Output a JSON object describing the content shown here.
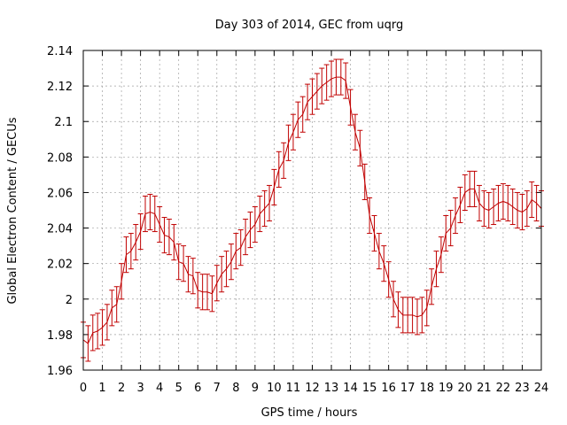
{
  "chart_data": {
    "type": "line",
    "title": "Day 303 of 2014, GEC from uqrg",
    "xlabel": "GPS time / hours",
    "ylabel": "Global Electron Content / GECUs",
    "xlim": [
      0,
      24
    ],
    "ylim": [
      1.96,
      2.14
    ],
    "xticks": [
      0,
      1,
      2,
      3,
      4,
      5,
      6,
      7,
      8,
      9,
      10,
      11,
      12,
      13,
      14,
      15,
      16,
      17,
      18,
      19,
      20,
      21,
      22,
      23,
      24
    ],
    "yticks": [
      1.96,
      1.98,
      2.0,
      2.02,
      2.04,
      2.06,
      2.08,
      2.1,
      2.12,
      2.14
    ],
    "ytick_labels": [
      "1.96",
      "1.98",
      "2",
      "2.02",
      "2.04",
      "2.06",
      "2.08",
      "2.1",
      "2.12",
      "2.14"
    ],
    "grid": true,
    "error": 0.01,
    "series": [
      {
        "color": "#c00000",
        "x": [
          0.0,
          0.25,
          0.5,
          0.75,
          1.0,
          1.25,
          1.5,
          1.75,
          2.0,
          2.25,
          2.5,
          2.75,
          3.0,
          3.25,
          3.5,
          3.75,
          4.0,
          4.25,
          4.5,
          4.75,
          5.0,
          5.25,
          5.5,
          5.75,
          6.0,
          6.25,
          6.5,
          6.75,
          7.0,
          7.25,
          7.5,
          7.75,
          8.0,
          8.25,
          8.5,
          8.75,
          9.0,
          9.25,
          9.5,
          9.75,
          10.0,
          10.25,
          10.5,
          10.75,
          11.0,
          11.25,
          11.5,
          11.75,
          12.0,
          12.25,
          12.5,
          12.75,
          13.0,
          13.25,
          13.5,
          13.75,
          14.0,
          14.25,
          14.5,
          14.75,
          15.0,
          15.25,
          15.5,
          15.75,
          16.0,
          16.25,
          16.5,
          16.75,
          17.0,
          17.25,
          17.5,
          17.75,
          18.0,
          18.25,
          18.5,
          18.75,
          19.0,
          19.25,
          19.5,
          19.75,
          20.0,
          20.25,
          20.5,
          20.75,
          21.0,
          21.25,
          21.5,
          21.75,
          22.0,
          22.25,
          22.5,
          22.75,
          23.0,
          23.25,
          23.5,
          23.75,
          24.0
        ],
        "y": [
          1.977,
          1.975,
          1.981,
          1.982,
          1.984,
          1.987,
          1.995,
          1.997,
          2.01,
          2.025,
          2.027,
          2.032,
          2.038,
          2.048,
          2.049,
          2.048,
          2.042,
          2.036,
          2.035,
          2.032,
          2.021,
          2.02,
          2.014,
          2.013,
          2.005,
          2.004,
          2.004,
          2.003,
          2.009,
          2.014,
          2.017,
          2.021,
          2.027,
          2.029,
          2.035,
          2.039,
          2.042,
          2.048,
          2.051,
          2.054,
          2.063,
          2.073,
          2.078,
          2.088,
          2.094,
          2.101,
          2.104,
          2.111,
          2.114,
          2.117,
          2.12,
          2.122,
          2.124,
          2.125,
          2.125,
          2.123,
          2.108,
          2.094,
          2.085,
          2.066,
          2.047,
          2.037,
          2.027,
          2.02,
          2.011,
          2.0,
          1.994,
          1.991,
          1.991,
          1.991,
          1.99,
          1.991,
          1.995,
          2.007,
          2.017,
          2.025,
          2.037,
          2.04,
          2.047,
          2.053,
          2.06,
          2.062,
          2.062,
          2.054,
          2.051,
          2.05,
          2.052,
          2.054,
          2.055,
          2.054,
          2.052,
          2.05,
          2.049,
          2.051,
          2.056,
          2.054,
          2.051
        ]
      }
    ]
  }
}
